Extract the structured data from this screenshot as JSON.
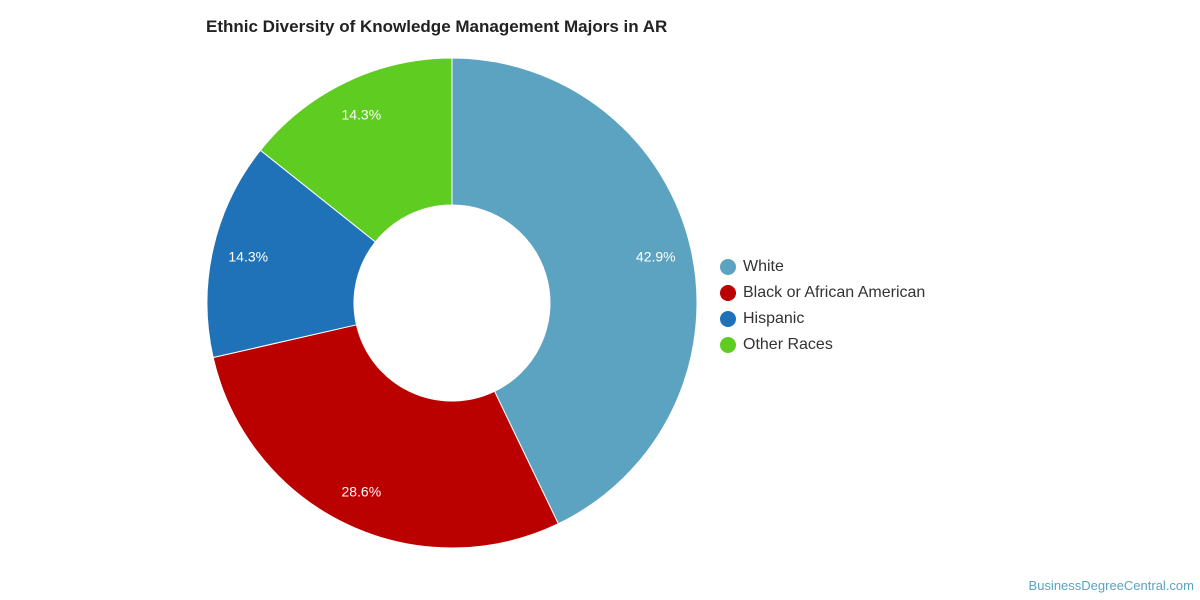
{
  "chart_data": {
    "type": "pie",
    "donut": true,
    "title": "Ethnic Diversity of Knowledge Management Majors in AR",
    "categories": [
      "White",
      "Black or African American",
      "Hispanic",
      "Other Races"
    ],
    "values": [
      42.9,
      28.6,
      14.3,
      14.3
    ],
    "labels": [
      "42.9%",
      "28.6%",
      "14.3%",
      "14.3%"
    ],
    "colors": [
      "#5ba3c0",
      "#bb0000",
      "#1f72b8",
      "#5fcc22"
    ],
    "legend_position": "right"
  },
  "credit": "BusinessDegreeCentral.com"
}
